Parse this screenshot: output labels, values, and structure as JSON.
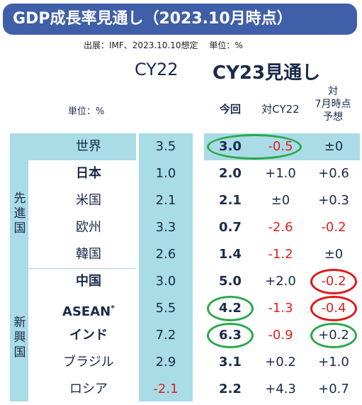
{
  "title": "GDP成長率見通し（2023.10月時点）",
  "source": "出展：IMF、2023.10.10想定　 単位：%",
  "headers": {
    "cy22": "CY22",
    "cy23": "CY23見通し",
    "unit": "単位：%",
    "current": "今回",
    "vs_cy22": "対CY22",
    "vs_july": [
      "対",
      "7月時点",
      "予想"
    ]
  },
  "groups": {
    "advanced": [
      "先",
      "進",
      "国"
    ],
    "emerging": [
      "新",
      "興",
      "国"
    ]
  },
  "chart_data": {
    "type": "table",
    "title": "GDP成長率見通し（2023.10月時点）",
    "unit": "%",
    "columns": [
      "CY22",
      "今回",
      "対CY22",
      "対7月時点予想"
    ],
    "rows": [
      {
        "country": "世界",
        "cy22": "3.5",
        "current": "3.0",
        "vs_cy22": "-0.5",
        "vs_july": "±0",
        "group": "",
        "bold": false
      },
      {
        "country": "日本",
        "cy22": "1.0",
        "current": "2.0",
        "vs_cy22": "+1.0",
        "vs_july": "+0.6",
        "group": "先進国",
        "bold": true
      },
      {
        "country": "米国",
        "cy22": "2.1",
        "current": "2.1",
        "vs_cy22": "±0",
        "vs_july": "+0.3",
        "group": "先進国",
        "bold": false
      },
      {
        "country": "欧州",
        "cy22": "3.3",
        "current": "0.7",
        "vs_cy22": "-2.6",
        "vs_july": "-0.2",
        "group": "先進国",
        "bold": false
      },
      {
        "country": "韓国",
        "cy22": "2.6",
        "current": "1.4",
        "vs_cy22": "-1.2",
        "vs_july": "±0",
        "group": "先進国",
        "bold": false
      },
      {
        "country": "中国",
        "cy22": "3.0",
        "current": "5.0",
        "vs_cy22": "+2.0",
        "vs_july": "-0.2",
        "group": "新興国",
        "bold": true
      },
      {
        "country": "ASEAN",
        "country_sup": "*",
        "cy22": "5.5",
        "current": "4.2",
        "vs_cy22": "-1.3",
        "vs_july": "-0.4",
        "group": "新興国",
        "bold": true
      },
      {
        "country": "インド",
        "cy22": "7.2",
        "current": "6.3",
        "vs_cy22": "-0.9",
        "vs_july": "+0.2",
        "group": "新興国",
        "bold": true
      },
      {
        "country": "ブラジル",
        "cy22": "2.9",
        "current": "3.1",
        "vs_cy22": "+0.2",
        "vs_july": "+1.0",
        "group": "新興国",
        "bold": false
      },
      {
        "country": "ロシア",
        "cy22": "-2.1",
        "current": "2.2",
        "vs_cy22": "+4.3",
        "vs_july": "+0.7",
        "group": "新興国",
        "bold": false
      }
    ],
    "highlights": [
      {
        "row": 0,
        "cols": [
          "current",
          "vs_cy22"
        ],
        "color": "#2aa84a"
      },
      {
        "row": 5,
        "cols": [
          "vs_july"
        ],
        "color": "#e01818"
      },
      {
        "row": 6,
        "cols": [
          "current"
        ],
        "color": "#2aa84a"
      },
      {
        "row": 6,
        "cols": [
          "vs_july"
        ],
        "color": "#e01818"
      },
      {
        "row": 7,
        "cols": [
          "current"
        ],
        "color": "#2aa84a"
      },
      {
        "row": 7,
        "cols": [
          "vs_july"
        ],
        "color": "#2aa84a"
      }
    ]
  },
  "colors": {
    "banner": "#3f5fa8",
    "highlight_band": "#a9dce6",
    "negative": "#e02020",
    "text": "#1a2a4a"
  }
}
